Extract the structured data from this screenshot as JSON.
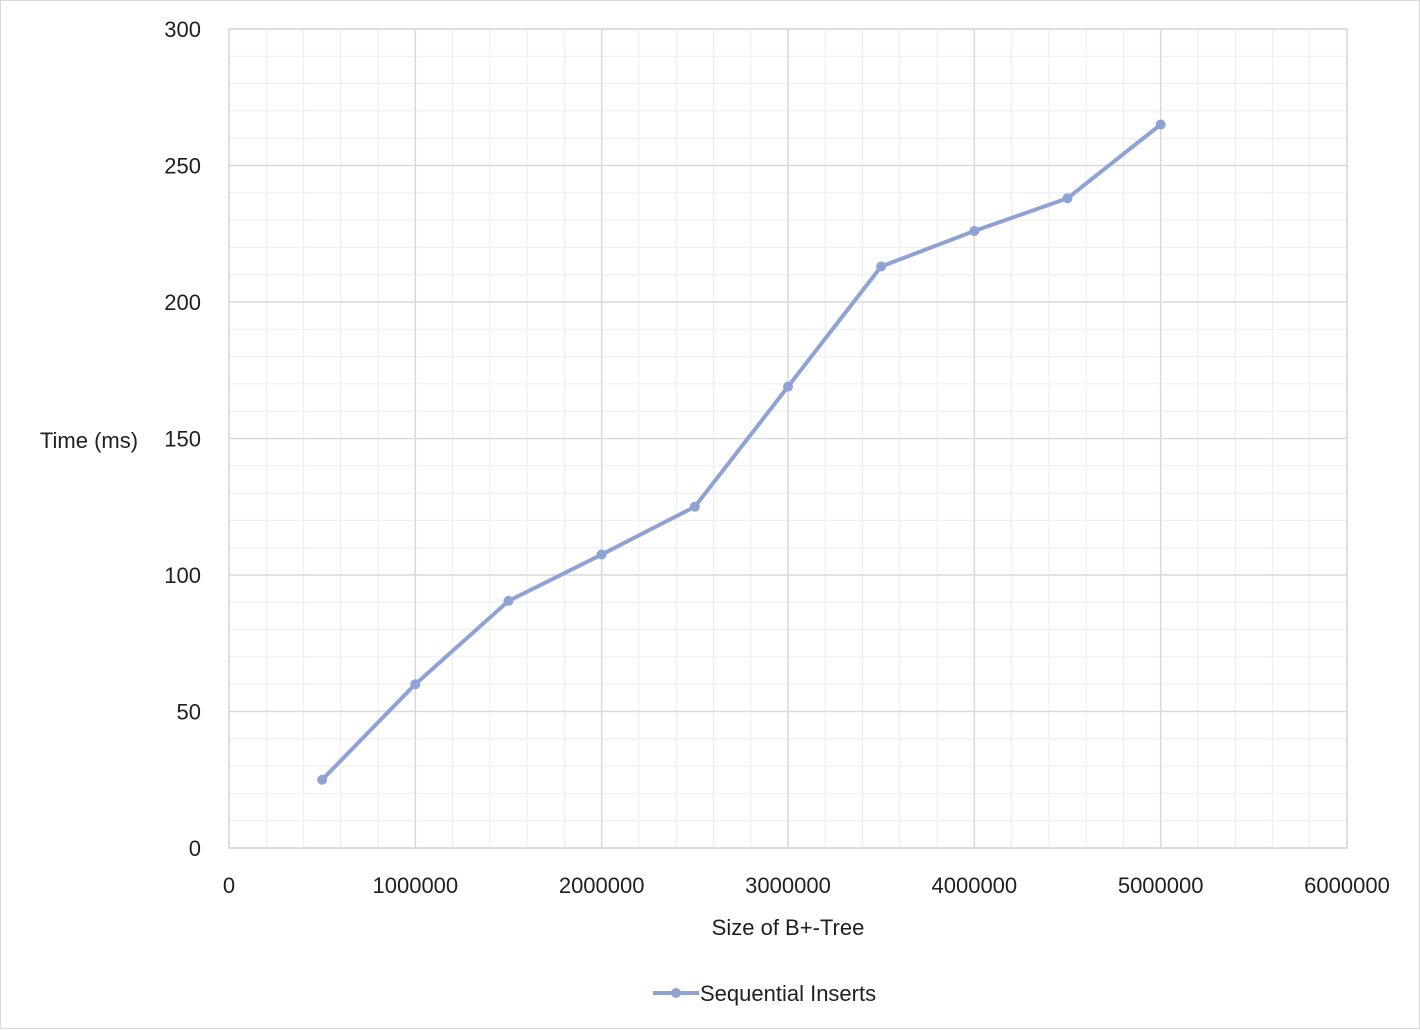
{
  "chart_data": {
    "type": "line",
    "title": "",
    "xlabel": "Size of B+-Tree",
    "ylabel": "Time (ms)",
    "xlim": [
      0,
      6000000
    ],
    "ylim": [
      0,
      300
    ],
    "x_major_step": 1000000,
    "x_minor_step": 200000,
    "y_major_step": 50,
    "y_minor_step": 10,
    "x_ticks": [
      "0",
      "1000000",
      "2000000",
      "3000000",
      "4000000",
      "5000000",
      "6000000"
    ],
    "y_ticks": [
      "0",
      "50",
      "100",
      "150",
      "200",
      "250",
      "300"
    ],
    "grid": true,
    "legend_position": "bottom",
    "colors": {
      "series": "#8fa2d4",
      "major_grid": "#d9d9d9",
      "minor_grid": "#ededed"
    },
    "series": [
      {
        "name": "Sequential Inserts",
        "x": [
          500000,
          1000000,
          1500000,
          2000000,
          2500000,
          3000000,
          3500000,
          4000000,
          4500000,
          5000000
        ],
        "y": [
          25,
          60,
          90.5,
          107.5,
          125,
          169,
          213,
          226,
          238,
          265
        ]
      }
    ]
  }
}
